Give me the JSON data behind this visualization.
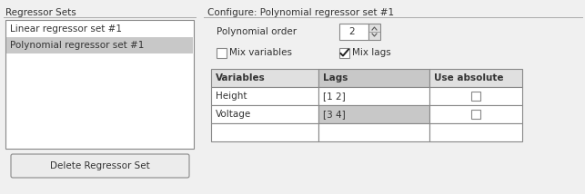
{
  "bg_color": "#f0f0f0",
  "white": "#ffffff",
  "selected_row_color": "#c8c8c8",
  "table_header_vars_color": "#e8e8e8",
  "table_header_lags_color": "#c8c8c8",
  "table_header_abs_color": "#e8e8e8",
  "table_row1_var_color": "#ffffff",
  "table_row1_lags_color": "#ffffff",
  "table_row2_var_color": "#ffffff",
  "table_row2_lags_color": "#d0d0d0",
  "border_color": "#aaaaaa",
  "dark_border": "#888888",
  "text_color": "#333333",
  "title_left": "Regressor Sets",
  "title_right": "Configure: Polynomial regressor set #1",
  "list_items": [
    "Linear regressor set #1",
    "Polynomial regressor set #1"
  ],
  "selected_index": 1,
  "poly_order_label": "Polynomial order",
  "poly_order_value": "2",
  "mix_variables_label": "Mix variables",
  "mix_lags_label": "Mix lags",
  "table_headers": [
    "Variables",
    "Lags",
    "Use absolute"
  ],
  "table_rows": [
    {
      "var": "Height",
      "lags": "[1 2]"
    },
    {
      "var": "Voltage",
      "lags": "[3 4]"
    }
  ],
  "delete_button_label": "Delete Regressor Set",
  "font_size": 7.5,
  "font_size_title": 7.5
}
